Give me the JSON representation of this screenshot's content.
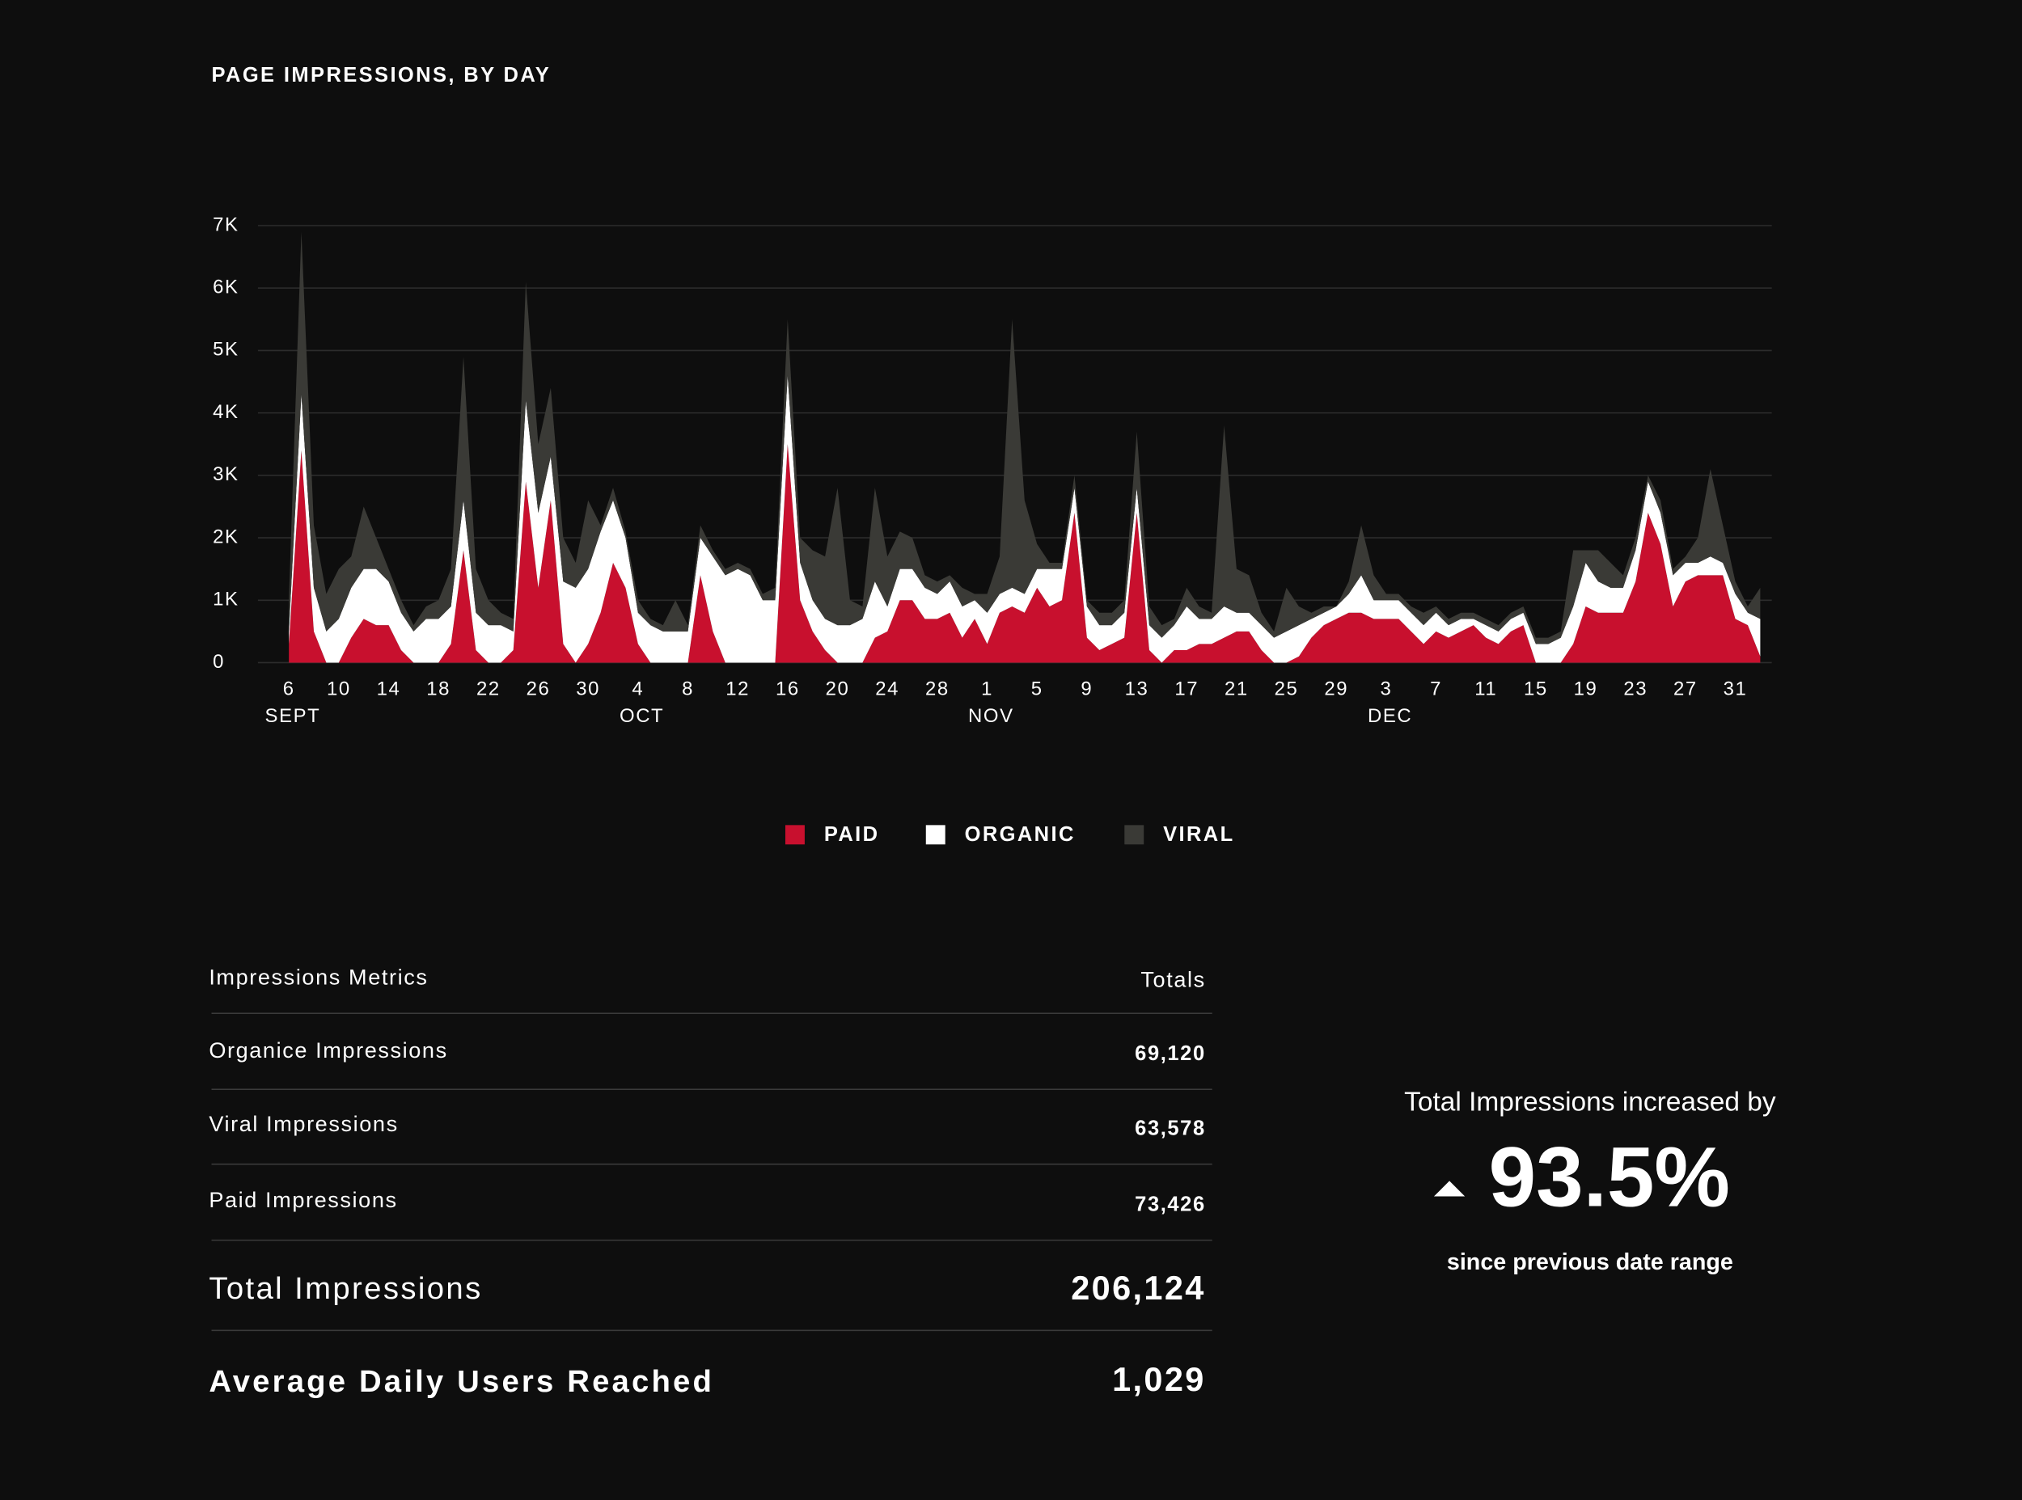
{
  "chart_data": {
    "type": "stacked_area",
    "title": "PAGE IMPRESSIONS, BY DAY",
    "categories": [
      "6",
      null,
      null,
      null,
      "10",
      null,
      null,
      null,
      "14",
      null,
      null,
      null,
      "18",
      null,
      null,
      null,
      "22",
      null,
      null,
      null,
      "26",
      null,
      null,
      null,
      "30",
      null,
      null,
      null,
      "4",
      null,
      null,
      null,
      "8",
      null,
      null,
      null,
      "12",
      null,
      null,
      null,
      "16",
      null,
      null,
      null,
      "20",
      null,
      null,
      null,
      "24",
      null,
      null,
      null,
      "28",
      null,
      null,
      null,
      "1",
      null,
      null,
      null,
      "5",
      null,
      null,
      null,
      "9",
      null,
      null,
      null,
      "13",
      null,
      null,
      null,
      "17",
      null,
      null,
      null,
      "21",
      null,
      null,
      null,
      "25",
      null,
      null,
      null,
      "29",
      null,
      null,
      null,
      "3",
      null,
      null,
      null,
      "7",
      null,
      null,
      null,
      "11",
      null,
      null,
      null,
      "15",
      null,
      null,
      null,
      "19",
      null,
      null,
      null,
      "23",
      null,
      null,
      null,
      "27",
      null,
      null,
      null,
      "31",
      null,
      null
    ],
    "month_labels": [
      {
        "index": 0,
        "label": "SEPT"
      },
      {
        "index": 28,
        "label": "OCT"
      },
      {
        "index": 56,
        "label": "NOV"
      },
      {
        "index": 88,
        "label": "DEC"
      }
    ],
    "series": [
      {
        "name": "PAID",
        "color": "#c8102e",
        "values": [
          300,
          3400,
          500,
          0,
          0,
          400,
          700,
          600,
          600,
          200,
          0,
          0,
          0,
          300,
          1800,
          200,
          0,
          0,
          200,
          2900,
          1200,
          2600,
          300,
          0,
          300,
          800,
          1600,
          1200,
          300,
          0,
          0,
          0,
          0,
          1400,
          500,
          0,
          0,
          0,
          0,
          0,
          3500,
          1000,
          500,
          200,
          0,
          0,
          0,
          400,
          500,
          1000,
          1000,
          700,
          700,
          800,
          400,
          700,
          300,
          800,
          900,
          800,
          1200,
          900,
          1000,
          2400,
          400,
          200,
          300,
          400,
          2400,
          200,
          0,
          200,
          200,
          300,
          300,
          400,
          500,
          500,
          200,
          0,
          0,
          100,
          400,
          600,
          700,
          800,
          800,
          700,
          700,
          700,
          500,
          300,
          500,
          400,
          500,
          600,
          400,
          300,
          500,
          600,
          0,
          0,
          0,
          300,
          900,
          800,
          800,
          800,
          1300,
          2400,
          1900,
          900,
          1300,
          1400,
          1400,
          1400,
          700,
          600,
          100
        ]
      },
      {
        "name": "ORGANIC",
        "color": "#ffffff",
        "values": [
          200,
          900,
          700,
          500,
          700,
          800,
          800,
          900,
          700,
          600,
          500,
          700,
          700,
          600,
          800,
          600,
          600,
          600,
          300,
          1300,
          1200,
          700,
          1000,
          1200,
          1200,
          1300,
          1000,
          800,
          500,
          600,
          500,
          500,
          500,
          600,
          1200,
          1400,
          1500,
          1400,
          1000,
          1000,
          1100,
          600,
          500,
          500,
          600,
          600,
          700,
          900,
          400,
          500,
          500,
          500,
          400,
          500,
          500,
          300,
          500,
          300,
          300,
          300,
          300,
          600,
          500,
          400,
          500,
          400,
          300,
          400,
          400,
          400,
          400,
          400,
          700,
          400,
          400,
          500,
          300,
          300,
          400,
          400,
          500,
          500,
          300,
          200,
          200,
          300,
          600,
          300,
          300,
          300,
          300,
          300,
          300,
          200,
          200,
          100,
          200,
          200,
          200,
          200,
          300,
          300,
          400,
          600,
          700,
          500,
          400,
          400,
          500,
          500,
          500,
          500,
          300,
          200,
          300,
          200,
          400,
          200,
          600
        ]
      },
      {
        "name": "VIRAL",
        "color": "#3a3a36",
        "values": [
          500,
          2600,
          1000,
          600,
          800,
          500,
          1000,
          500,
          200,
          200,
          100,
          200,
          300,
          600,
          2300,
          700,
          400,
          200,
          200,
          1900,
          1100,
          1100,
          700,
          400,
          1100,
          100,
          200,
          100,
          200,
          100,
          100,
          500,
          100,
          200,
          100,
          100,
          100,
          100,
          100,
          200,
          900,
          400,
          800,
          1000,
          2200,
          400,
          200,
          1500,
          800,
          600,
          500,
          200,
          200,
          100,
          300,
          100,
          300,
          600,
          4300,
          1500,
          400,
          100,
          100,
          200,
          100,
          200,
          200,
          200,
          900,
          300,
          200,
          100,
          300,
          200,
          100,
          2900,
          700,
          600,
          200,
          100,
          700,
          300,
          100,
          100,
          0,
          200,
          800,
          400,
          100,
          100,
          100,
          200,
          100,
          100,
          100,
          100,
          100,
          100,
          100,
          100,
          100,
          100,
          100,
          900,
          200,
          500,
          400,
          200,
          200,
          100,
          200,
          100,
          100,
          400,
          1400,
          600,
          200,
          100,
          500
        ]
      }
    ],
    "ylim": [
      0,
      7000
    ],
    "yticks": [
      0,
      {
        "value": 1000,
        "label": "1K"
      },
      {
        "value": 2000,
        "label": "2K"
      },
      {
        "value": 3000,
        "label": "3K"
      },
      {
        "value": 4000,
        "label": "4K"
      },
      {
        "value": 5000,
        "label": "5K"
      },
      {
        "value": 6000,
        "label": "6K"
      },
      {
        "value": 7000,
        "label": "7K"
      }
    ],
    "grid": true,
    "legend": "bottom"
  },
  "table": {
    "header": [
      "Impressions Metrics",
      "Totals"
    ],
    "rows": [
      [
        "Organice Impressions",
        "69,120"
      ],
      [
        "Viral Impressions",
        "63,578"
      ],
      [
        "Paid Impressions",
        "73,426"
      ]
    ],
    "total": [
      "Total Impressions",
      "206,124"
    ],
    "average": [
      "Average Daily Users Reached",
      "1,029"
    ]
  },
  "summary": {
    "text": "Total Impressions increased by",
    "value": "93.5%",
    "note": "since previous date range"
  }
}
